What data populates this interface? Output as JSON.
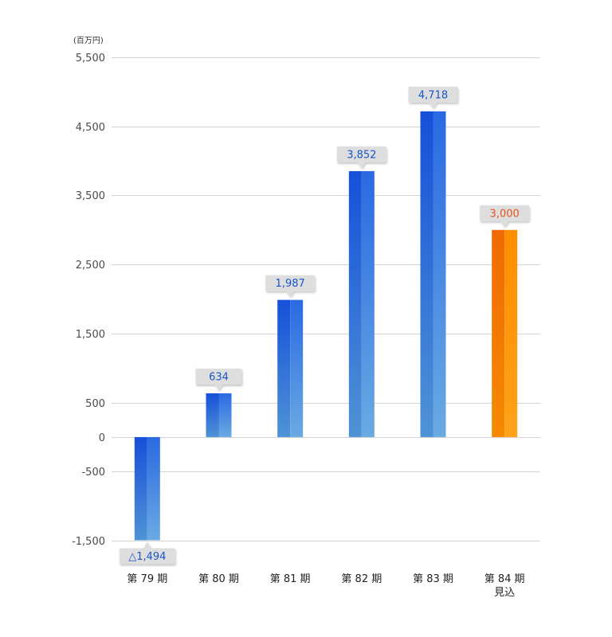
{
  "unit_label": "(百万円)",
  "colors": {
    "blue_series": "#1f5fd6",
    "forecast": "#ff8a00",
    "blue_value_text": "#1a55c8",
    "orange_value_text": "#e2561a",
    "gridline": "#d4d4d4",
    "callout_bg": "#dedede"
  },
  "chart_data": {
    "type": "bar",
    "title": "",
    "xlabel": "",
    "ylabel": "",
    "ylim": [
      -1500,
      5500
    ],
    "yticks": [
      5500,
      4500,
      3500,
      2500,
      1500,
      500,
      0,
      -500,
      -1500
    ],
    "ytick_labels": [
      "5,500",
      "4,500",
      "3,500",
      "2,500",
      "1,500",
      "500",
      "0",
      "-500",
      "-1,500"
    ],
    "categories": [
      [
        "第 79 期"
      ],
      [
        "第 80 期"
      ],
      [
        "第 81 期"
      ],
      [
        "第 82 期"
      ],
      [
        "第 83 期"
      ],
      [
        "第 84 期",
        "見込"
      ]
    ],
    "values": [
      -1494,
      634,
      1987,
      3852,
      4718,
      3000
    ],
    "value_labels": [
      "△1,494",
      "634",
      "1,987",
      "3,852",
      "4,718",
      "3,000"
    ],
    "forecast_index": 5
  }
}
